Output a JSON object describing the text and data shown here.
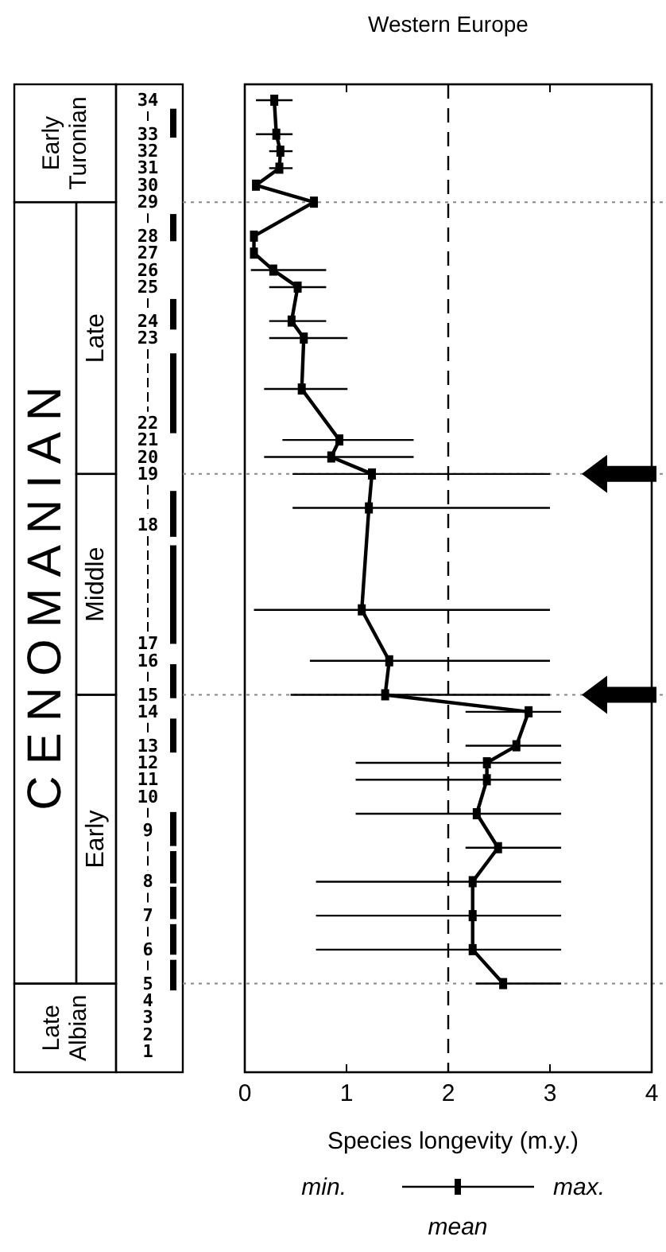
{
  "chart_data": {
    "type": "line",
    "orientation": "horizontal",
    "title": "Western Europe",
    "xlabel": "Species longevity (m.y.)",
    "annotations": [
      "Early Turonian",
      "CENOMANIAN",
      "Late",
      "Middle",
      "Early",
      "Late Albian",
      "min.",
      "max.",
      "mean"
    ],
    "xlim": [
      0,
      4
    ],
    "xticks": [
      0,
      1,
      2,
      3,
      4
    ],
    "categories": [
      "34",
      null,
      "33",
      "32",
      "31",
      "30",
      "29",
      null,
      "28",
      "27",
      "26",
      "25",
      null,
      "24",
      "23",
      null,
      null,
      null,
      null,
      "22",
      "21",
      "20",
      "19",
      null,
      null,
      "18",
      null,
      null,
      null,
      null,
      null,
      null,
      "17",
      "16",
      null,
      "15",
      "14",
      null,
      "13",
      "12",
      "11",
      "10",
      null,
      "9",
      null,
      null,
      "8",
      null,
      "7",
      null,
      "6",
      null,
      "5",
      "4",
      "3",
      "2",
      "1"
    ],
    "values": [
      0.29,
      null,
      0.31,
      0.35,
      0.34,
      0.11,
      0.68,
      null,
      0.09,
      0.09,
      0.28,
      0.52,
      null,
      0.46,
      0.58,
      null,
      null,
      0.56,
      null,
      null,
      0.93,
      0.85,
      1.25,
      null,
      1.22,
      null,
      null,
      null,
      null,
      null,
      1.15,
      null,
      null,
      1.42,
      null,
      1.38,
      2.79,
      null,
      2.67,
      2.38,
      2.38,
      null,
      2.28,
      null,
      2.49,
      null,
      2.24,
      null,
      2.24,
      null,
      2.24,
      null,
      2.54,
      null,
      null,
      null,
      null
    ],
    "errors": [
      [
        0.11,
        0.47
      ],
      null,
      [
        0.11,
        0.47
      ],
      [
        0.24,
        0.47
      ],
      [
        0.24,
        0.47
      ],
      null,
      null,
      null,
      null,
      null,
      [
        0.06,
        0.8
      ],
      [
        0.24,
        0.8
      ],
      null,
      [
        0.24,
        0.8
      ],
      [
        0.24,
        1.01
      ],
      null,
      null,
      [
        0.19,
        1.01
      ],
      null,
      null,
      [
        0.37,
        1.66
      ],
      [
        0.19,
        1.66
      ],
      [
        0.47,
        3.0
      ],
      null,
      [
        0.47,
        3.0
      ],
      null,
      null,
      null,
      null,
      null,
      [
        0.09,
        3.0
      ],
      null,
      null,
      [
        0.64,
        3.0
      ],
      null,
      [
        0.45,
        3.0
      ],
      [
        2.17,
        3.11
      ],
      null,
      [
        2.17,
        3.11
      ],
      [
        1.09,
        3.11
      ],
      [
        1.09,
        3.11
      ],
      null,
      [
        1.09,
        3.11
      ],
      null,
      [
        2.17,
        3.11
      ],
      null,
      [
        0.7,
        3.11
      ],
      null,
      [
        0.7,
        3.11
      ],
      null,
      [
        0.7,
        3.11
      ],
      null,
      [
        2.27,
        3.11
      ],
      null,
      null,
      null,
      null
    ],
    "color": "#000000",
    "marker": "square",
    "line_style": "solid",
    "ref_lines": [
      {
        "axis": "y",
        "value": "29",
        "line_style": "dotted",
        "color": "#888888"
      },
      {
        "axis": "y",
        "value": "19",
        "line_style": "dotted",
        "color": "#888888"
      },
      {
        "axis": "y",
        "value": "15",
        "line_style": "dotted",
        "color": "#888888"
      },
      {
        "axis": "y",
        "value": "5",
        "line_style": "dotted",
        "color": "#888888"
      },
      {
        "axis": "x",
        "value": 2,
        "line_style": "dashed",
        "color": "#000000"
      }
    ]
  }
}
